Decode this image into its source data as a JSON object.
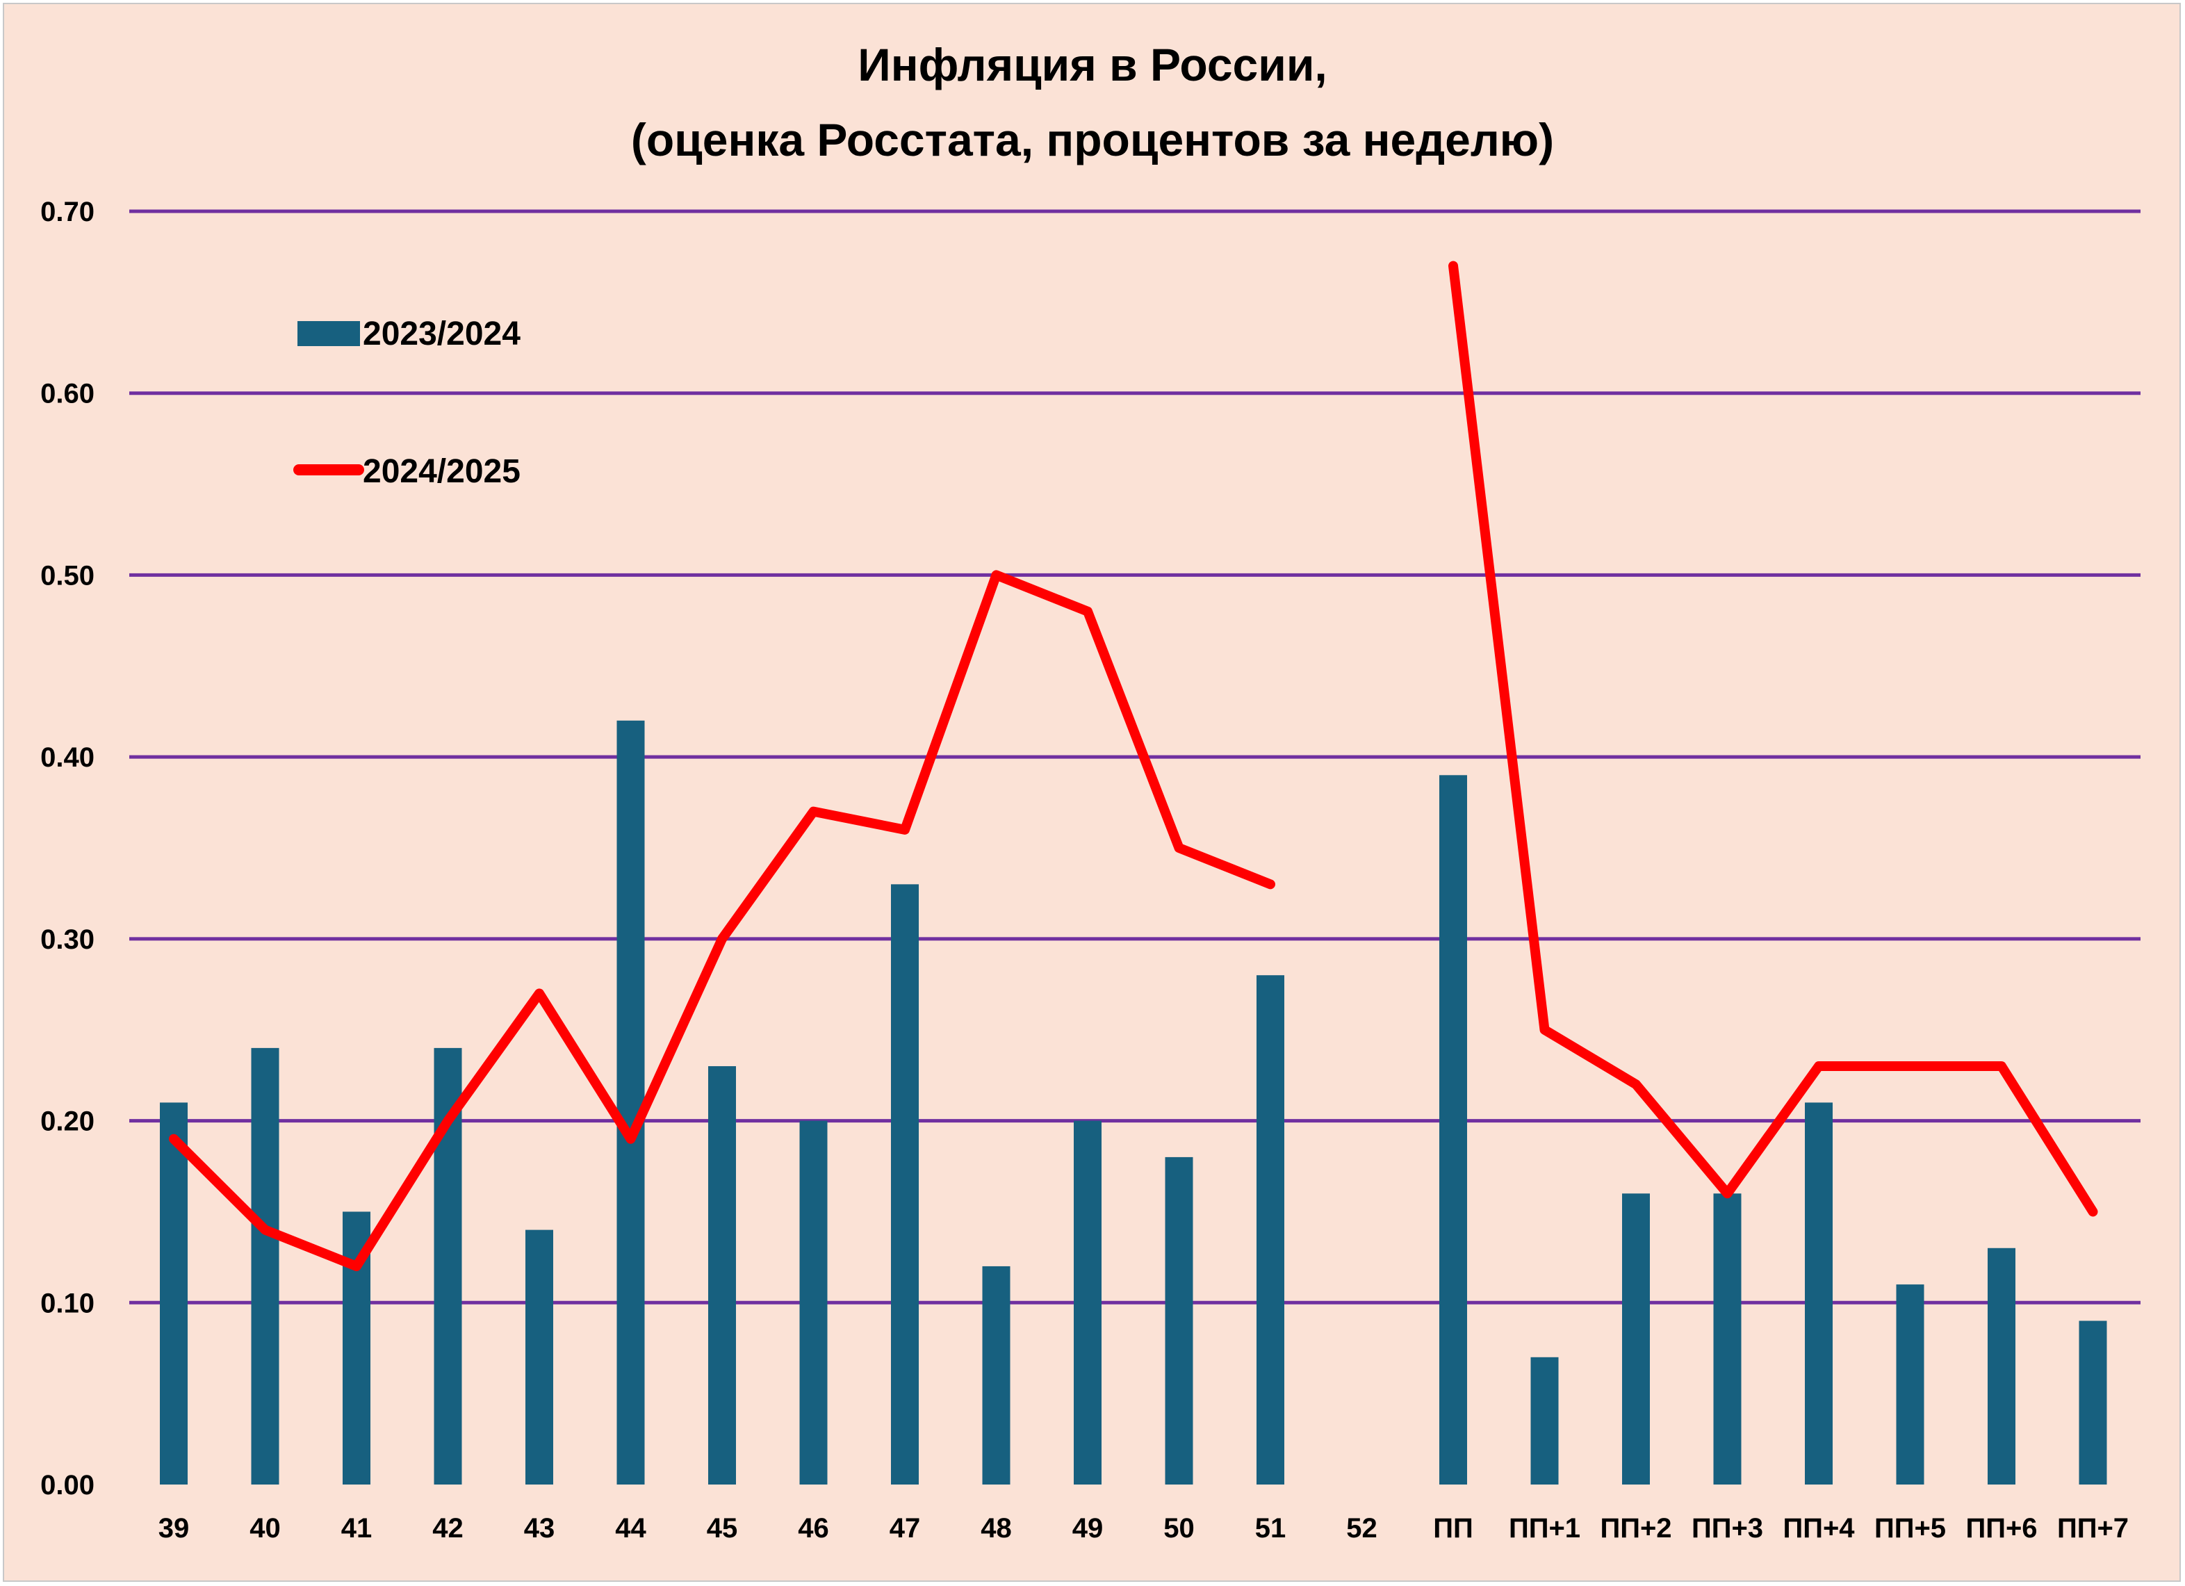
{
  "chart_data": {
    "type": "bar",
    "title": [
      "Инфляция в России,",
      "(оценка Росстата, процентов за неделю)"
    ],
    "xlabel": "",
    "ylabel": "",
    "ylim": [
      0,
      0.7
    ],
    "yticks": [
      "0.00",
      "0.10",
      "0.20",
      "0.30",
      "0.40",
      "0.50",
      "0.60",
      "0.70"
    ],
    "grid": true,
    "legend_position": "top-left",
    "categories": [
      "39",
      "40",
      "41",
      "42",
      "43",
      "44",
      "45",
      "46",
      "47",
      "48",
      "49",
      "50",
      "51",
      "52",
      "ПП",
      "ПП+1",
      "ПП+2",
      "ПП+3",
      "ПП+4",
      "ПП+5",
      "ПП+6",
      "ПП+7"
    ],
    "series": [
      {
        "name": "2023/2024",
        "kind": "bar",
        "color": "#17607f",
        "values": [
          0.21,
          0.24,
          0.15,
          0.24,
          0.14,
          0.42,
          0.23,
          0.2,
          0.33,
          0.12,
          0.2,
          0.18,
          0.28,
          null,
          0.39,
          0.07,
          0.16,
          0.16,
          0.21,
          0.11,
          0.13,
          0.09
        ]
      },
      {
        "name": "2024/2025",
        "kind": "line",
        "color": "#ff0000",
        "values": [
          0.19,
          0.14,
          0.12,
          0.2,
          0.27,
          0.19,
          0.3,
          0.37,
          0.36,
          0.5,
          0.48,
          0.35,
          0.33,
          null,
          0.67,
          0.25,
          0.22,
          0.16,
          0.23,
          0.23,
          0.23,
          0.15
        ]
      }
    ],
    "colors": {
      "background": "#fbe2d6",
      "gridline": "#7030a0"
    }
  }
}
